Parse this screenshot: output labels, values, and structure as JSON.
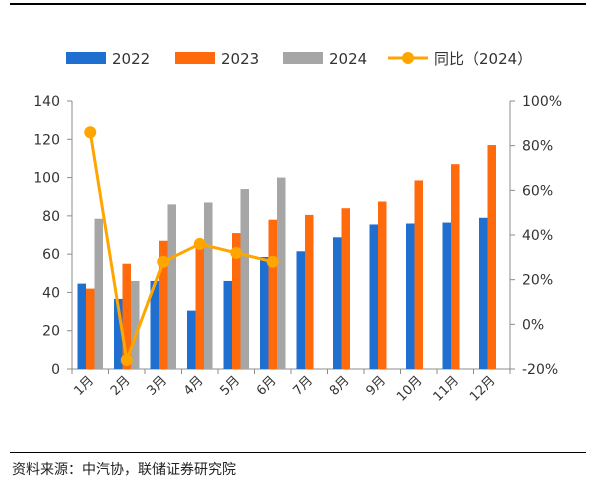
{
  "chart_data": {
    "type": "bar",
    "categories": [
      "1月",
      "2月",
      "3月",
      "4月",
      "5月",
      "6月",
      "7月",
      "8月",
      "9月",
      "10月",
      "11月",
      "12月"
    ],
    "series": [
      {
        "name": "2022",
        "kind": "bar",
        "color": "#1F6FD1",
        "values": [
          44.6,
          36.6,
          46.0,
          30.5,
          46.0,
          58.5,
          61.5,
          68.8,
          75.5,
          76.0,
          76.5,
          79.0
        ]
      },
      {
        "name": "2023",
        "kind": "bar",
        "color": "#FF6A0D",
        "values": [
          42.0,
          55.0,
          67.0,
          65.5,
          71.0,
          78.0,
          80.5,
          84.0,
          87.5,
          98.5,
          107.0,
          117.0
        ]
      },
      {
        "name": "2024",
        "kind": "bar",
        "color": "#A6A6A6",
        "values": [
          78.5,
          46.0,
          86.0,
          87.0,
          94.0,
          100.0,
          null,
          null,
          null,
          null,
          null,
          null
        ]
      },
      {
        "name": "同比（2024）",
        "kind": "line",
        "axis": "right",
        "color": "#FFA500",
        "values": [
          0.86,
          -0.16,
          0.28,
          0.36,
          0.32,
          0.28,
          null,
          null,
          null,
          null,
          null,
          null
        ]
      }
    ],
    "y_left": {
      "min": 0,
      "max": 140,
      "ticks": [
        "0",
        "20",
        "40",
        "60",
        "80",
        "100",
        "120",
        "140"
      ]
    },
    "y_right": {
      "min": -0.2,
      "max": 1.0,
      "ticks": [
        "-20%",
        "0%",
        "20%",
        "40%",
        "60%",
        "80%",
        "100%"
      ]
    },
    "legend_position": "top",
    "grid": false
  },
  "source": "资料来源：中汽协，联储证券研究院"
}
